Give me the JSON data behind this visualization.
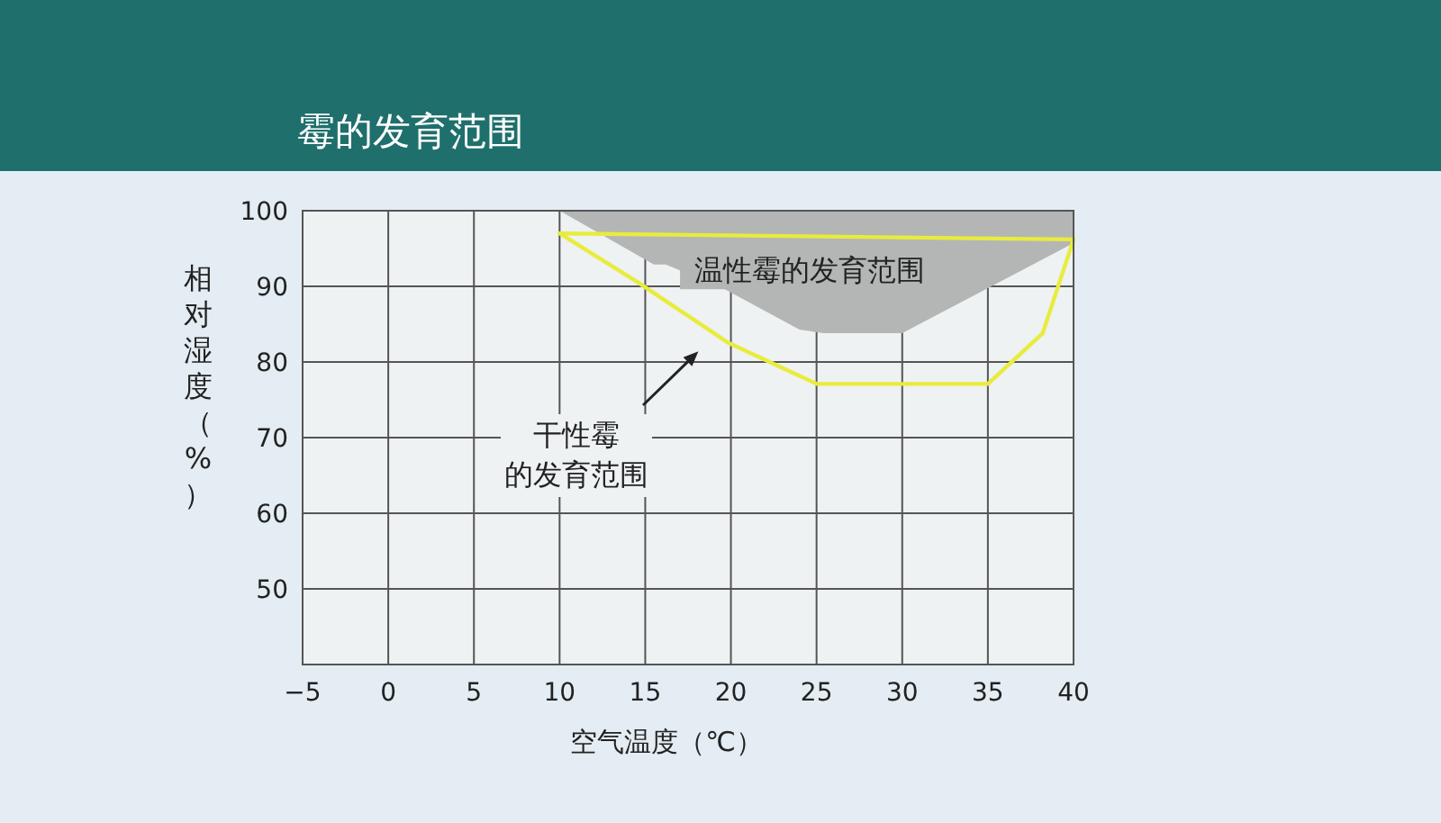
{
  "chart_data": {
    "type": "area",
    "title": "霉的发育范围",
    "xlabel": "空气温度（℃）",
    "ylabel": "相对湿度（%）",
    "xlim": [
      -5,
      40
    ],
    "ylim": [
      40,
      100
    ],
    "xticks": [
      -5,
      0,
      5,
      10,
      15,
      20,
      25,
      30,
      35,
      40
    ],
    "yticks": [
      50,
      60,
      70,
      80,
      90,
      100
    ],
    "grid": true,
    "series": [
      {
        "type": "area",
        "color": "#b4b6b6",
        "x": [
          10,
          15.5,
          16.2,
          19.5,
          24,
          25.4,
          30,
          40,
          40,
          10
        ],
        "values": [
          100,
          92.9,
          92.9,
          89.8,
          84.3,
          83.8,
          83.8,
          95.7,
          100,
          100
        ]
      },
      {
        "type": "line",
        "color": "#e8ec3c",
        "x": [
          10,
          14.6,
          19.8,
          25,
          35,
          38.2,
          40
        ],
        "values": [
          97,
          90.5,
          82.6,
          77.1,
          77.1,
          83.8,
          96.2
        ]
      },
      {
        "type": "line",
        "color": "#e8ec3c",
        "x": [
          10,
          40
        ],
        "values": [
          97,
          96.2
        ]
      }
    ],
    "annotations": [
      "温性霉的发育范围",
      "干性霉的发育范围"
    ]
  }
}
